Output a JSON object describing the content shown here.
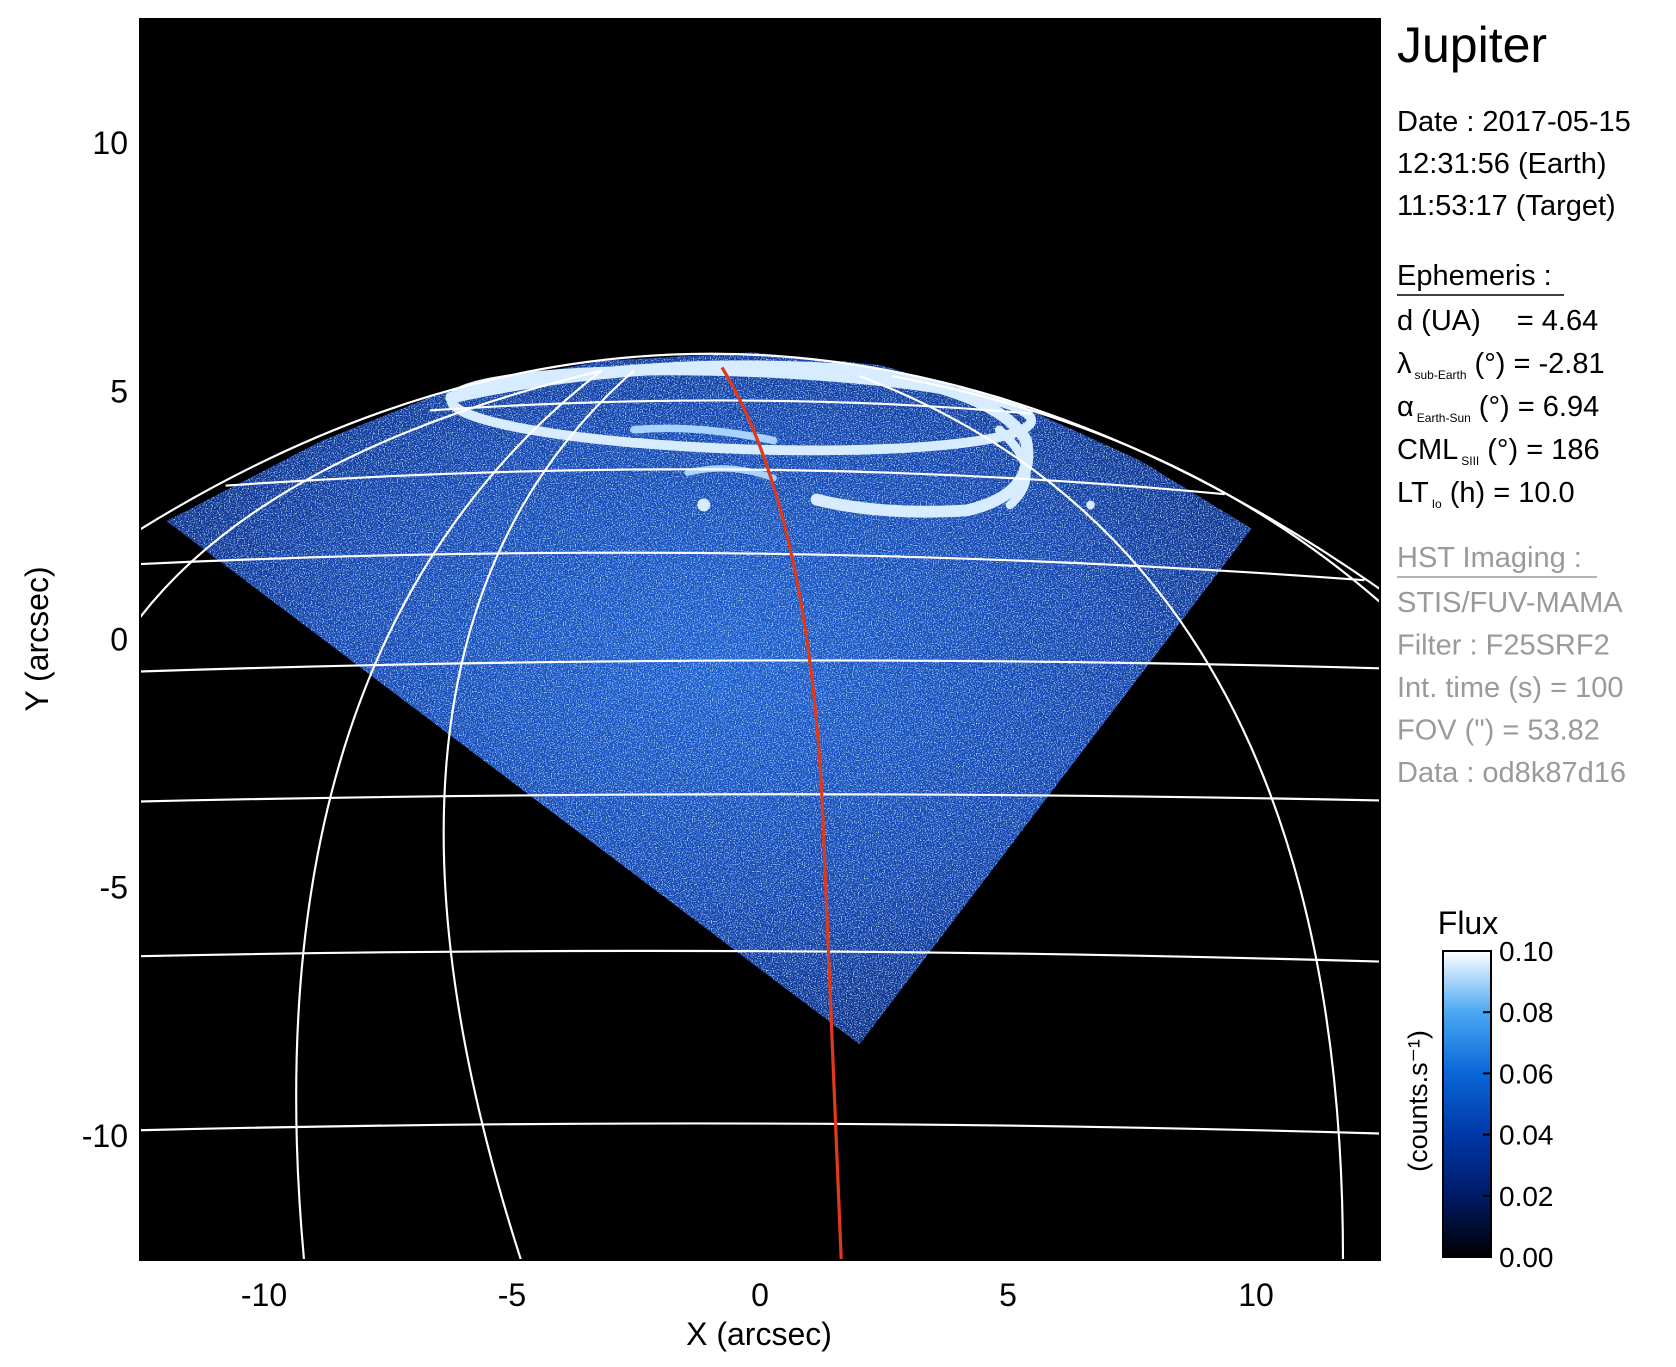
{
  "chart_data": {
    "type": "image",
    "title": "Jupiter",
    "xlabel": "X (arcsec)",
    "ylabel": "Y (arcsec)",
    "xlim": [
      -12.5,
      12.5
    ],
    "ylim": [
      -12.5,
      12.5
    ],
    "xticks": [
      -10,
      -5,
      0,
      5,
      10
    ],
    "yticks": [
      -10,
      -5,
      0,
      5,
      10
    ],
    "colorbar": {
      "label": "Flux",
      "unit": "(counts.s⁻¹)",
      "lim": [
        0,
        0.1
      ],
      "ticks": [
        {
          "value": 0,
          "label": "0.00"
        },
        {
          "value": 0.02,
          "label": "0.02"
        },
        {
          "value": 0.04,
          "label": "0.04"
        },
        {
          "value": 0.06,
          "label": "0.06"
        },
        {
          "value": 0.08,
          "label": "0.08"
        },
        {
          "value": 0.1,
          "label": "0.10"
        }
      ],
      "colormap": [
        "#000000",
        "#001a66",
        "#0038a8",
        "#0a66d8",
        "#4aa8f2",
        "#ffffff"
      ]
    },
    "info": {
      "date": [
        "Date : 2017-05-15",
        "12:31:56 (Earth)",
        "11:53:17 (Target)"
      ],
      "ephemeris_title": "Ephemeris :",
      "ephemeris": [
        {
          "symbol": "d (UA)",
          "text": "= 4.64"
        },
        {
          "symbol": "λ",
          "sub": "sub-Earth",
          "text": "(°) = -2.81"
        },
        {
          "symbol": "α",
          "sub": "Earth-Sun",
          "text": "(°) = 6.94"
        },
        {
          "symbol": "CML",
          "sub": "SIII",
          "text": "(°) = 186"
        },
        {
          "symbol": "LT",
          "sub": "Io",
          "text": "(h) = 10.0"
        }
      ],
      "imaging_title": "HST Imaging :",
      "imaging": [
        "STIS/FUV-MAMA",
        "Filter : F25SRF2",
        "Int. time (s) = 100",
        "FOV (\") = 53.82",
        "Data : od8k87d16"
      ]
    }
  }
}
